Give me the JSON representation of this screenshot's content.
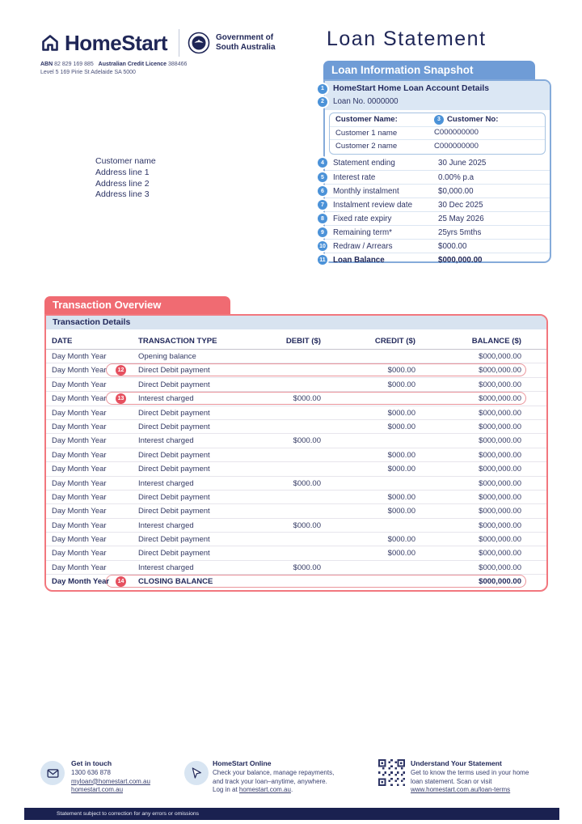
{
  "header": {
    "brand": "HomeStart",
    "gov_line1": "Government of",
    "gov_line2": "South Australia",
    "abn_label": "ABN",
    "abn_value": "82 829 169 885",
    "licence_label": "Australian Credit Licence",
    "licence_value": "388466",
    "street": "Level 5 169 Pirie St Adelaide SA 5000",
    "doc_title": "Loan Statement"
  },
  "recipient": {
    "lines": [
      "Customer name",
      "Address line 1",
      "Address line 2",
      "Address line 3"
    ]
  },
  "snapshot": {
    "title": "Loan Information Snapshot",
    "account_row": {
      "num": "1",
      "label": "HomeStart Home Loan Account Details"
    },
    "loan_no_row": {
      "num": "2",
      "label": "Loan No. 0000000"
    },
    "customer_table": {
      "name_header": "Customer Name:",
      "no_badge": "3",
      "no_header": "Customer No:",
      "rows": [
        {
          "name": "Customer 1 name",
          "no": "C000000000"
        },
        {
          "name": "Customer 2 name",
          "no": "C000000000"
        }
      ]
    },
    "items": [
      {
        "num": "4",
        "label": "Statement ending",
        "value": "30 June 2025",
        "bold": false
      },
      {
        "num": "5",
        "label": "Interest rate",
        "value": "0.00% p.a",
        "bold": false
      },
      {
        "num": "6",
        "label": "Monthly instalment",
        "value": "$0,000.00",
        "bold": false
      },
      {
        "num": "7",
        "label": "Instalment review date",
        "value": "30 Dec 2025",
        "bold": false
      },
      {
        "num": "8",
        "label": "Fixed rate expiry",
        "value": "25 May 2026",
        "bold": false
      },
      {
        "num": "9",
        "label": "Remaining term*",
        "value": "25yrs 5mths",
        "bold": false
      },
      {
        "num": "10",
        "label": "Redraw / Arrears",
        "value": "$000.00",
        "bold": false
      },
      {
        "num": "11",
        "label": "Loan Balance",
        "value": "$000,000.00",
        "bold": true
      }
    ]
  },
  "transactions": {
    "title": "Transaction Overview",
    "subtitle": "Transaction Details",
    "columns": {
      "date": "DATE",
      "type": "TRANSACTION TYPE",
      "debit": "DEBIT ($)",
      "credit": "CREDIT ($)",
      "balance": "BALANCE ($)"
    },
    "rows": [
      {
        "date": "Day Month Year",
        "type": "Opening balance",
        "debit": "",
        "credit": "",
        "balance": "$000,000.00"
      },
      {
        "date": "Day Month Year",
        "badge": "12",
        "highlight": true,
        "type": "Direct Debit payment",
        "debit": "",
        "credit": "$000.00",
        "balance": "$000,000.00"
      },
      {
        "date": "Day Month Year",
        "type": "Direct Debit payment",
        "debit": "",
        "credit": "$000.00",
        "balance": "$000,000.00"
      },
      {
        "date": "Day Month Year",
        "badge": "13",
        "highlight": true,
        "type": "Interest charged",
        "debit": "$000.00",
        "credit": "",
        "balance": "$000,000.00"
      },
      {
        "date": "Day Month Year",
        "type": "Direct Debit payment",
        "debit": "",
        "credit": "$000.00",
        "balance": "$000,000.00"
      },
      {
        "date": "Day Month Year",
        "type": "Direct Debit payment",
        "debit": "",
        "credit": "$000.00",
        "balance": "$000,000.00"
      },
      {
        "date": "Day Month Year",
        "type": "Interest charged",
        "debit": "$000.00",
        "credit": "",
        "balance": "$000,000.00"
      },
      {
        "date": "Day Month Year",
        "type": "Direct Debit payment",
        "debit": "",
        "credit": "$000.00",
        "balance": "$000,000.00"
      },
      {
        "date": "Day Month Year",
        "type": "Direct Debit payment",
        "debit": "",
        "credit": "$000.00",
        "balance": "$000,000.00"
      },
      {
        "date": "Day Month Year",
        "type": "Interest charged",
        "debit": "$000.00",
        "credit": "",
        "balance": "$000,000.00"
      },
      {
        "date": "Day Month Year",
        "type": "Direct Debit payment",
        "debit": "",
        "credit": "$000.00",
        "balance": "$000,000.00"
      },
      {
        "date": "Day Month Year",
        "type": "Direct Debit payment",
        "debit": "",
        "credit": "$000.00",
        "balance": "$000,000.00"
      },
      {
        "date": "Day Month Year",
        "type": "Interest charged",
        "debit": "$000.00",
        "credit": "",
        "balance": "$000,000.00"
      },
      {
        "date": "Day Month Year",
        "type": "Direct Debit payment",
        "debit": "",
        "credit": "$000.00",
        "balance": "$000,000.00"
      },
      {
        "date": "Day Month Year",
        "type": "Direct Debit payment",
        "debit": "",
        "credit": "$000.00",
        "balance": "$000,000.00"
      },
      {
        "date": "Day Month Year",
        "type": "Interest charged",
        "debit": "$000.00",
        "credit": "",
        "balance": "$000,000.00"
      },
      {
        "date": "Day Month Year",
        "badge": "14",
        "highlight": true,
        "strong": true,
        "type": "CLOSING BALANCE",
        "debit": "",
        "credit": "",
        "balance": "$000,000.00"
      }
    ]
  },
  "footer": {
    "contact": {
      "title": "Get in touch",
      "phone": "1300 636 878",
      "email": "myloan@homestart.com.au",
      "website": "homestart.com.au"
    },
    "online": {
      "title": "HomeStart Online",
      "line1": "Check your balance, manage repayments,",
      "line2": "and track your loan–anytime, anywhere.",
      "line3_prefix": "Log in at ",
      "line3_link": "homestart.com.au",
      "line3_suffix": "."
    },
    "understand": {
      "title": "Understand Your Statement",
      "line1": "Get to know the terms used in your home",
      "line2": "loan statement. Scan or visit",
      "link": "www.homestart.com.au/loan-terms"
    },
    "disclaimer": "Statement subject to correction for any errors or omissions"
  },
  "colors": {
    "navy": "#1f2657",
    "blue_accent": "#6f9cd6",
    "blue_badge": "#4b92d8",
    "red_accent": "#f06b72",
    "red_badge": "#e6505f",
    "light_blue_bar": "#d8e3f0",
    "footer_bar": "#1a2150"
  }
}
